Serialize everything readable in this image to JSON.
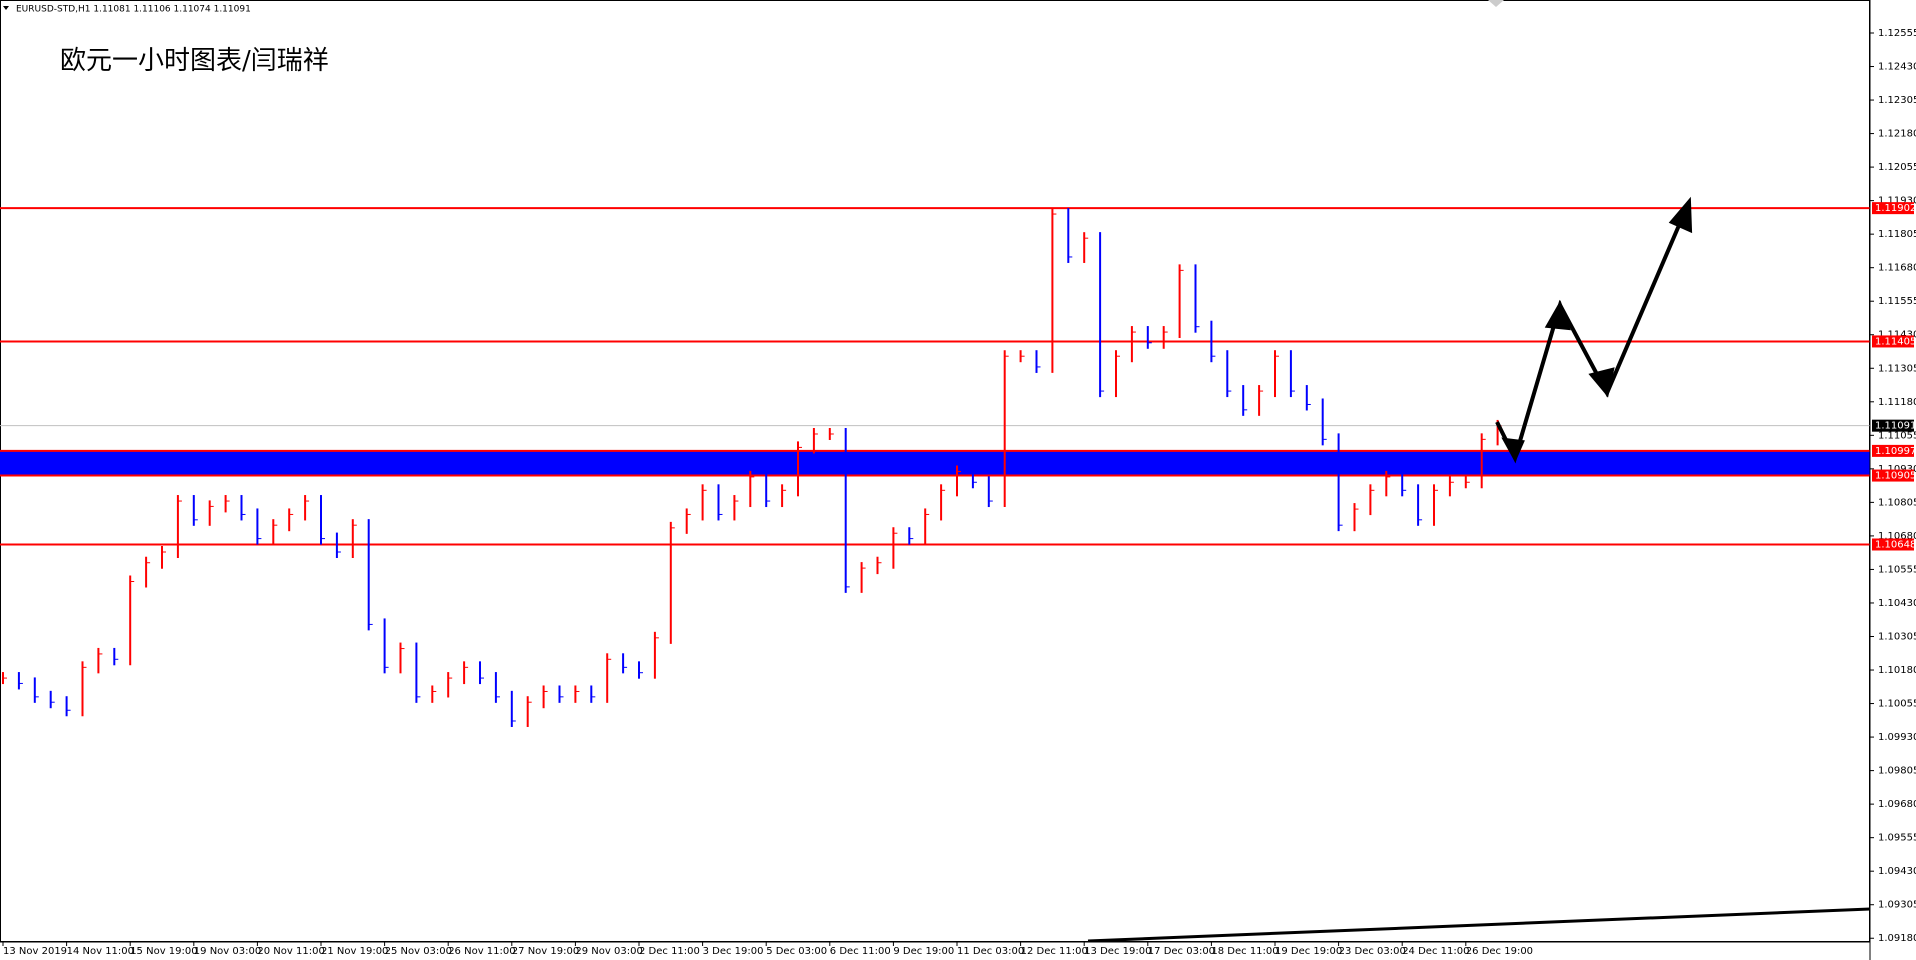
{
  "chart_data": {
    "type": "bar-chart",
    "subtitle": "EURUSD-STD,H1  1.11081 1.11106 1.11074 1.11091",
    "title": "欧元一小时图表/闫瑞祥",
    "up_color": "#ff0000",
    "down_color": "#0000ff",
    "categories": [
      "13 Nov 2019",
      null,
      null,
      null,
      "14 Nov 11:00",
      null,
      null,
      null,
      "15 Nov 19:00",
      null,
      null,
      null,
      "19 Nov 03:00",
      null,
      null,
      null,
      "20 Nov 11:00",
      null,
      null,
      null,
      "21 Nov 19:00",
      null,
      null,
      null,
      "25 Nov 03:00",
      null,
      null,
      null,
      "26 Nov 11:00",
      null,
      null,
      null,
      "27 Nov 19:00",
      null,
      null,
      null,
      "29 Nov 03:00",
      null,
      null,
      null,
      "2 Dec 11:00",
      null,
      null,
      null,
      "3 Dec 19:00",
      null,
      null,
      null,
      "5 Dec 03:00",
      null,
      null,
      null,
      "6 Dec 11:00",
      null,
      null,
      null,
      "9 Dec 19:00",
      null,
      null,
      null,
      "11 Dec 03:00",
      null,
      null,
      null,
      "12 Dec 11:00",
      null,
      null,
      null,
      "13 Dec 19:00",
      null,
      null,
      null,
      "17 Dec 03:00",
      null,
      null,
      null,
      "18 Dec 11:00",
      null,
      null,
      null,
      "19 Dec 19:00",
      null,
      null,
      null,
      "23 Dec 03:00",
      null,
      null,
      null,
      "24 Dec 11:00",
      null,
      null,
      null,
      "26 Dec 19:00",
      null,
      null
    ],
    "values": [
      1.1015,
      1.1013,
      1.1008,
      1.1006,
      1.1003,
      1.1019,
      1.1024,
      1.1022,
      1.1051,
      1.1058,
      1.1062,
      1.1081,
      1.1074,
      1.1079,
      1.1081,
      1.1076,
      1.1067,
      1.1072,
      1.1076,
      1.1081,
      1.1067,
      1.1062,
      1.1072,
      1.1035,
      1.1019,
      1.1026,
      1.1008,
      1.101,
      1.1015,
      1.1019,
      1.1015,
      1.1008,
      1.0999,
      1.1006,
      1.101,
      1.1008,
      1.101,
      1.1008,
      1.1022,
      1.1019,
      1.1017,
      1.103,
      1.1071,
      1.1076,
      1.1085,
      1.1076,
      1.1081,
      1.109,
      1.1081,
      1.1085,
      1.1101,
      1.1106,
      1.1106,
      1.1049,
      1.1056,
      1.1058,
      1.1069,
      1.1067,
      1.1076,
      1.1085,
      1.1092,
      1.1088,
      1.1081,
      1.1135,
      1.1135,
      1.1131,
      1.1188,
      1.1172,
      1.1179,
      1.1122,
      1.1135,
      1.1144,
      1.114,
      1.1144,
      1.1167,
      1.1146,
      1.1135,
      1.1122,
      1.1115,
      1.1122,
      1.1135,
      1.1122,
      1.1117,
      1.1104,
      1.1072,
      1.1078,
      1.1085,
      1.109,
      1.1085,
      1.1074,
      1.1085,
      1.1088,
      1.1088,
      1.1104,
      1.1109
    ],
    "ylim": [
      1.09166,
      1.12678
    ],
    "yticks": [
      1.12555,
      {
        "value": 1.1243,
        "label": "1.12430"
      },
      1.12305,
      {
        "value": 1.1218,
        "label": "1.12180"
      },
      1.12055,
      {
        "value": 1.1193,
        "label": "1.11930"
      },
      1.11805,
      {
        "value": 1.1168,
        "label": "1.11680"
      },
      1.11555,
      {
        "value": 1.1143,
        "label": "1.11430"
      },
      1.11305,
      {
        "value": 1.1118,
        "label": "1.11180"
      },
      1.11055,
      {
        "value": 1.1093,
        "label": "1.10930"
      },
      1.10805,
      {
        "value": 1.1068,
        "label": "1.10680"
      },
      1.10555,
      {
        "value": 1.1043,
        "label": "1.10430"
      },
      1.10305,
      {
        "value": 1.1018,
        "label": "1.10180"
      },
      1.10055,
      {
        "value": 1.0993,
        "label": "1.09930"
      },
      1.09805,
      {
        "value": 1.0968,
        "label": "1.09680"
      },
      1.09555,
      {
        "value": 1.0943,
        "label": "1.09430"
      },
      1.09305,
      {
        "value": 1.0918,
        "label": "1.09180"
      }
    ],
    "levels": [
      1.11902,
      1.11405,
      1.10997,
      1.10905,
      1.10648
    ],
    "level_color": "#ff0000",
    "band": {
      "from": 1.10905,
      "to": 1.10997,
      "color": "#0000ff"
    },
    "current_price": 1.11091
  }
}
